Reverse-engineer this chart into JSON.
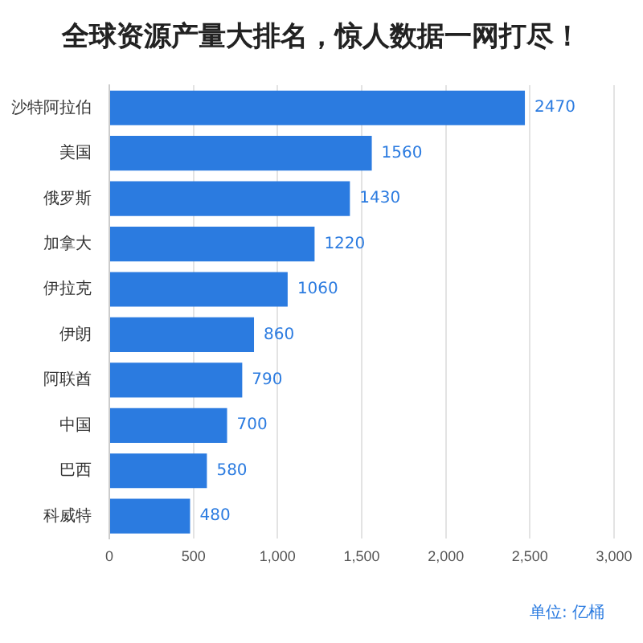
{
  "chart_data": {
    "type": "bar",
    "orientation": "horizontal",
    "title": "全球资源产量大排名，惊人数据一网打尽！",
    "categories": [
      "沙特阿拉伯",
      "美国",
      "俄罗斯",
      "加拿大",
      "伊拉克",
      "伊朗",
      "阿联酋",
      "中国",
      "巴西",
      "科威特"
    ],
    "values": [
      2470,
      1560,
      1430,
      1220,
      1060,
      860,
      790,
      700,
      580,
      480
    ],
    "color": "#2b7be0",
    "xlim": [
      0,
      3000
    ],
    "xticks": [
      0,
      500,
      {
        "value": 1000,
        "label": "1,000"
      },
      {
        "value": 1500,
        "label": "1,500"
      },
      {
        "value": 2000,
        "label": "2,000"
      },
      {
        "value": 2500,
        "label": "2,500"
      },
      {
        "value": 3000,
        "label": "3,000"
      }
    ],
    "grid": "x",
    "data_labels": true,
    "annotations": [
      "单位: 亿桶"
    ]
  }
}
